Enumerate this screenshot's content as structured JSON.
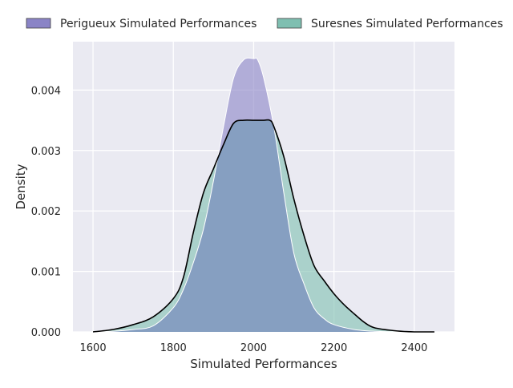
{
  "colors": {
    "background": "#eaeaf2",
    "grid": "#ffffff",
    "perigueux_fill": "#8a84c6",
    "suresnes_fill": "#7fbfb1",
    "overlap_fill": "#869fc1",
    "suresnes_line": "#000000"
  },
  "chart_data": {
    "type": "area",
    "title": "",
    "xlabel": "Simulated Performances",
    "ylabel": "Density",
    "xlim": [
      1550,
      2500
    ],
    "ylim": [
      0,
      0.0048
    ],
    "xticks": [
      1600,
      1800,
      2000,
      2200,
      2400
    ],
    "xtick_labels": [
      "1600",
      "1800",
      "2000",
      "2200",
      "2400"
    ],
    "yticks": [
      0,
      0.001,
      0.002,
      0.003,
      0.004
    ],
    "ytick_labels": [
      "0.000",
      "0.001",
      "0.002",
      "0.003",
      "0.004"
    ],
    "grid": true,
    "legend_position": "top",
    "series": [
      {
        "name": "Perigueux Simulated Performances",
        "color": "#8a84c6",
        "x": [
          1600,
          1650,
          1700,
          1750,
          1800,
          1825,
          1850,
          1875,
          1900,
          1925,
          1950,
          1975,
          2000,
          2010,
          2025,
          2050,
          2075,
          2100,
          2125,
          2150,
          2175,
          2200,
          2250,
          2300,
          2350,
          2400,
          2450
        ],
        "y": [
          0,
          1e-05,
          4e-05,
          0.0001,
          0.0004,
          0.0007,
          0.00115,
          0.0017,
          0.0025,
          0.0034,
          0.0042,
          0.0045,
          0.00452,
          0.0045,
          0.0042,
          0.0034,
          0.0023,
          0.0013,
          0.0008,
          0.0004,
          0.00022,
          0.00012,
          4e-05,
          1e-05,
          3e-06,
          0,
          0
        ]
      },
      {
        "name": "Suresnes Simulated Performances",
        "color": "#7fbfb1",
        "x": [
          1600,
          1650,
          1700,
          1750,
          1800,
          1825,
          1850,
          1875,
          1900,
          1925,
          1950,
          1975,
          2000,
          2025,
          2040,
          2050,
          2075,
          2100,
          2125,
          2150,
          2175,
          2200,
          2225,
          2250,
          2275,
          2300,
          2350,
          2400,
          2450
        ],
        "y": [
          0,
          4e-05,
          0.00012,
          0.00025,
          0.00055,
          0.0009,
          0.00165,
          0.0023,
          0.0027,
          0.0031,
          0.00345,
          0.0035,
          0.0035,
          0.0035,
          0.0035,
          0.0034,
          0.0029,
          0.0022,
          0.0016,
          0.0011,
          0.00085,
          0.00063,
          0.00045,
          0.0003,
          0.00016,
          7e-05,
          2e-05,
          0,
          0
        ]
      }
    ]
  }
}
